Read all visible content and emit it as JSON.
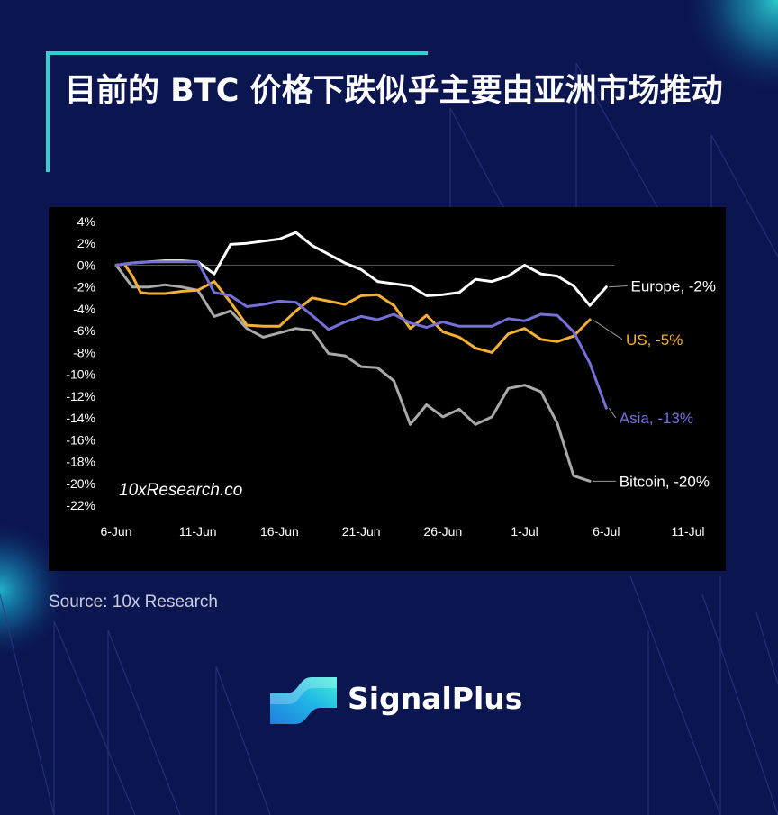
{
  "title": "目前的 BTC 价格下跌似乎主要由亚洲市场推动",
  "source": "Source: 10x Research",
  "brand": {
    "name": "SignalPlus"
  },
  "colors": {
    "background": "#0b1550",
    "accent": "#2ed3cf",
    "chart_bg": "#000000",
    "europe": "#ffffff",
    "us": "#f2b134",
    "asia": "#7470d8",
    "bitcoin": "#a9a9a9"
  },
  "chart_data": {
    "type": "line",
    "watermark": "10xResearch.co",
    "y_ticks": [
      "4%",
      "2%",
      "0%",
      "-2%",
      "-4%",
      "-6%",
      "-8%",
      "-10%",
      "-12%",
      "-14%",
      "-16%",
      "-18%",
      "-20%",
      "-22%"
    ],
    "x_ticks": [
      "6-Jun",
      "11-Jun",
      "16-Jun",
      "21-Jun",
      "26-Jun",
      "1-Jul",
      "6-Jul",
      "11-Jul"
    ],
    "ylim": [
      -22,
      4
    ],
    "x_range_days": [
      0,
      35
    ],
    "x_unit": "days since 6-Jun",
    "grid": false,
    "zero_line": true,
    "series": [
      {
        "name": "Europe",
        "end_label": "Europe, -2%",
        "color": "#ffffff",
        "points": [
          [
            0,
            0
          ],
          [
            1,
            0.2
          ],
          [
            2,
            0.3
          ],
          [
            3,
            0.4
          ],
          [
            4,
            0.4
          ],
          [
            5,
            0.3
          ],
          [
            6,
            -0.8
          ],
          [
            7,
            1.9
          ],
          [
            8,
            2.0
          ],
          [
            9,
            2.2
          ],
          [
            10,
            2.4
          ],
          [
            11,
            3.0
          ],
          [
            12,
            1.8
          ],
          [
            13,
            1.0
          ],
          [
            14,
            0.2
          ],
          [
            15,
            -0.4
          ],
          [
            16,
            -1.5
          ],
          [
            17,
            -1.7
          ],
          [
            18,
            -1.9
          ],
          [
            19,
            -2.8
          ],
          [
            20,
            -2.7
          ],
          [
            21,
            -2.5
          ],
          [
            22,
            -1.3
          ],
          [
            23,
            -1.5
          ],
          [
            24,
            -1.0
          ],
          [
            25,
            0.0
          ],
          [
            26,
            -0.8
          ],
          [
            27,
            -1.0
          ],
          [
            28,
            -1.9
          ],
          [
            29,
            -3.7
          ],
          [
            30,
            -2.0
          ]
        ]
      },
      {
        "name": "US",
        "end_label": "US, -5%",
        "color": "#f2b134",
        "points": [
          [
            0,
            0
          ],
          [
            0.5,
            0.1
          ],
          [
            1,
            -1.0
          ],
          [
            1.5,
            -2.5
          ],
          [
            2,
            -2.6
          ],
          [
            3,
            -2.6
          ],
          [
            4,
            -2.4
          ],
          [
            5,
            -2.3
          ],
          [
            6,
            -1.5
          ],
          [
            7,
            -3.4
          ],
          [
            8,
            -5.5
          ],
          [
            9,
            -5.6
          ],
          [
            10,
            -5.6
          ],
          [
            11,
            -4.2
          ],
          [
            12,
            -3.0
          ],
          [
            13,
            -3.3
          ],
          [
            14,
            -3.6
          ],
          [
            15,
            -2.8
          ],
          [
            16,
            -2.7
          ],
          [
            17,
            -3.7
          ],
          [
            18,
            -5.8
          ],
          [
            19,
            -4.6
          ],
          [
            20,
            -6.1
          ],
          [
            21,
            -6.6
          ],
          [
            22,
            -7.6
          ],
          [
            23,
            -8.0
          ],
          [
            24,
            -6.3
          ],
          [
            25,
            -5.8
          ],
          [
            26,
            -6.8
          ],
          [
            27,
            -7.0
          ],
          [
            28,
            -6.5
          ],
          [
            29,
            -5.0
          ]
        ]
      },
      {
        "name": "Asia",
        "end_label": "Asia, -13%",
        "color": "#7470d8",
        "points": [
          [
            0,
            0
          ],
          [
            1,
            0.2
          ],
          [
            2,
            0.3
          ],
          [
            3,
            0.3
          ],
          [
            4,
            0.3
          ],
          [
            5,
            0.3
          ],
          [
            6,
            -2.5
          ],
          [
            7,
            -2.8
          ],
          [
            8,
            -3.8
          ],
          [
            9,
            -3.6
          ],
          [
            10,
            -3.3
          ],
          [
            11,
            -3.4
          ],
          [
            12,
            -4.6
          ],
          [
            13,
            -5.9
          ],
          [
            14,
            -5.2
          ],
          [
            15,
            -4.7
          ],
          [
            16,
            -5.0
          ],
          [
            17,
            -4.5
          ],
          [
            18,
            -5.3
          ],
          [
            19,
            -5.7
          ],
          [
            20,
            -5.2
          ],
          [
            21,
            -5.6
          ],
          [
            22,
            -5.6
          ],
          [
            23,
            -5.6
          ],
          [
            24,
            -4.9
          ],
          [
            25,
            -5.1
          ],
          [
            26,
            -4.5
          ],
          [
            27,
            -4.6
          ],
          [
            28,
            -6.1
          ],
          [
            29,
            -9.0
          ],
          [
            30,
            -13.1
          ]
        ]
      },
      {
        "name": "Bitcoin",
        "end_label": "Bitcoin, -20%",
        "color": "#a9a9a9",
        "points": [
          [
            0,
            0
          ],
          [
            1,
            -2.0
          ],
          [
            2,
            -2.0
          ],
          [
            3,
            -1.8
          ],
          [
            4,
            -2.0
          ],
          [
            5,
            -2.3
          ],
          [
            6,
            -4.7
          ],
          [
            7,
            -4.2
          ],
          [
            8,
            -5.8
          ],
          [
            9,
            -6.6
          ],
          [
            10,
            -6.2
          ],
          [
            11,
            -5.8
          ],
          [
            12,
            -6.0
          ],
          [
            13,
            -8.1
          ],
          [
            14,
            -8.3
          ],
          [
            15,
            -9.3
          ],
          [
            16,
            -9.4
          ],
          [
            17,
            -10.6
          ],
          [
            18,
            -14.6
          ],
          [
            19,
            -12.8
          ],
          [
            20,
            -13.9
          ],
          [
            21,
            -13.2
          ],
          [
            22,
            -14.6
          ],
          [
            23,
            -13.9
          ],
          [
            24,
            -11.3
          ],
          [
            25,
            -11.0
          ],
          [
            26,
            -11.6
          ],
          [
            27,
            -14.5
          ],
          [
            28,
            -19.3
          ],
          [
            29,
            -19.8
          ]
        ]
      }
    ]
  }
}
